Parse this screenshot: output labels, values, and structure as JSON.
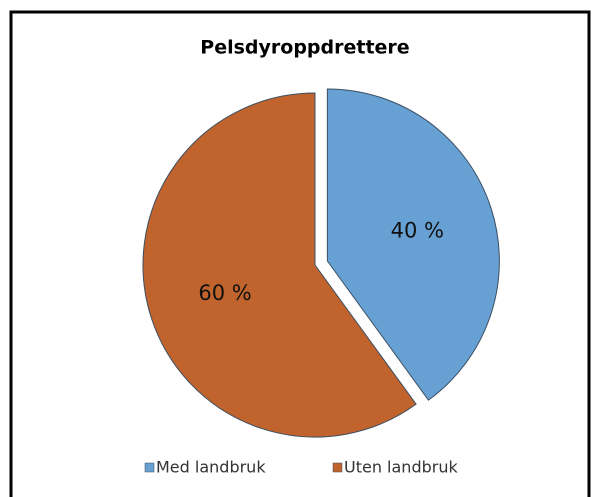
{
  "chart_data": {
    "type": "pie",
    "title": "Pelsdyroppdrettere",
    "categories": [
      "Med landbruk",
      "Uten landbruk"
    ],
    "values": [
      40,
      60
    ],
    "value_labels": [
      "40 %",
      "60 %"
    ],
    "colors": [
      "#67a0d2",
      "#c1632d"
    ],
    "explode": [
      true,
      false
    ],
    "legend": "bottom"
  }
}
